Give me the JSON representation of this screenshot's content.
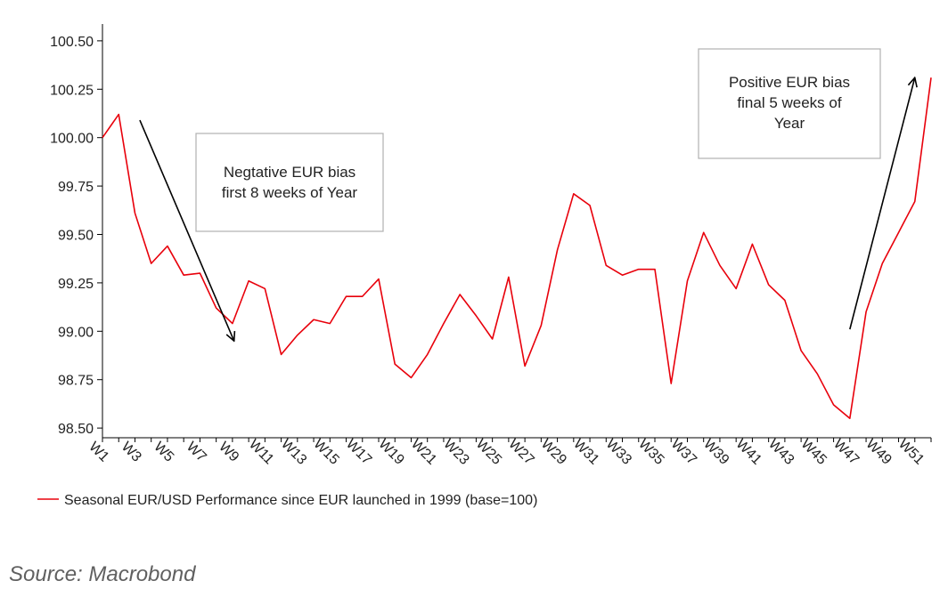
{
  "chart_data": {
    "type": "line",
    "x": [
      "W1",
      "W2",
      "W3",
      "W4",
      "W5",
      "W6",
      "W7",
      "W8",
      "W9",
      "W10",
      "W11",
      "W12",
      "W13",
      "W14",
      "W15",
      "W16",
      "W17",
      "W18",
      "W19",
      "W20",
      "W21",
      "W22",
      "W23",
      "W24",
      "W25",
      "W26",
      "W27",
      "W28",
      "W29",
      "W30",
      "W31",
      "W32",
      "W33",
      "W34",
      "W35",
      "W36",
      "W37",
      "W38",
      "W39",
      "W40",
      "W41",
      "W42",
      "W43",
      "W44",
      "W45",
      "W46",
      "W47",
      "W48",
      "W49",
      "W50",
      "W51",
      "W52"
    ],
    "x_tick_labels": [
      "W1",
      "W3",
      "W5",
      "W7",
      "W9",
      "W11",
      "W13",
      "W15",
      "W17",
      "W19",
      "W21",
      "W23",
      "W25",
      "W27",
      "W29",
      "W31",
      "W33",
      "W35",
      "W37",
      "W39",
      "W41",
      "W43",
      "W45",
      "W47",
      "W49",
      "W51"
    ],
    "series": [
      {
        "name": "Seasonal EUR/USD Performance since EUR launched in 1999 (base=100)",
        "color": "#e8000b",
        "values": [
          100.0,
          100.12,
          99.61,
          99.35,
          99.44,
          99.29,
          99.3,
          99.12,
          99.04,
          99.26,
          99.22,
          98.88,
          98.98,
          99.06,
          99.04,
          99.18,
          99.18,
          99.27,
          98.83,
          98.76,
          98.88,
          99.04,
          99.19,
          99.08,
          98.96,
          99.28,
          98.82,
          99.03,
          99.42,
          99.71,
          99.65,
          99.34,
          99.29,
          99.32,
          99.32,
          98.73,
          99.26,
          99.51,
          99.34,
          99.22,
          99.45,
          99.24,
          99.16,
          98.9,
          98.78,
          98.62,
          98.55,
          99.1,
          99.35,
          99.51,
          99.67,
          100.31
        ]
      }
    ],
    "ylim": [
      98.45,
      100.55
    ],
    "y_ticks": [
      "98.50",
      "98.75",
      "99.00",
      "99.25",
      "99.50",
      "99.75",
      "100.00",
      "100.25",
      "100.50"
    ],
    "title": "",
    "xlabel": "",
    "ylabel": "",
    "legend_position": "bottom-left",
    "grid": false,
    "annotations": [
      {
        "name": "negative-bias",
        "lines": [
          "Negtative EUR bias",
          "first 8 weeks of Year"
        ],
        "arrow": {
          "from": {
            "week": 3.3,
            "value": 100.09
          },
          "to": {
            "week": 9.1,
            "value": 98.95
          }
        }
      },
      {
        "name": "positive-bias",
        "lines": [
          "Positive EUR bias",
          "final 5 weeks of",
          "Year"
        ],
        "arrow": {
          "from": {
            "week": 47.0,
            "value": 99.01
          },
          "to": {
            "week": 51.0,
            "value": 100.31
          }
        }
      }
    ]
  },
  "source": "Source: Macrobond"
}
